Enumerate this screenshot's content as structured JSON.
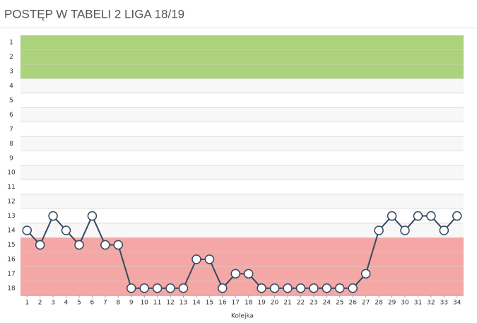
{
  "chart_data": {
    "type": "line",
    "title": "POSTĘP W TABELI 2 LIGA 18/19",
    "x_label": "Kolejka",
    "x": [
      1,
      2,
      3,
      4,
      5,
      6,
      7,
      8,
      9,
      10,
      11,
      12,
      13,
      14,
      15,
      16,
      17,
      18,
      19,
      20,
      21,
      22,
      23,
      24,
      25,
      26,
      27,
      28,
      29,
      30,
      31,
      32,
      33,
      34
    ],
    "series": [
      {
        "color": "#34495e",
        "values": [
          14,
          15,
          13,
          14,
          15,
          13,
          15,
          15,
          18,
          18,
          18,
          18,
          18,
          16,
          16,
          18,
          17,
          17,
          18,
          18,
          18,
          18,
          18,
          18,
          18,
          18,
          17,
          14,
          13,
          14,
          13,
          13,
          14,
          13
        ]
      }
    ],
    "xlim": [
      0.5,
      34.5
    ],
    "xticks": [
      1,
      2,
      3,
      4,
      5,
      6,
      7,
      8,
      9,
      10,
      11,
      12,
      13,
      14,
      15,
      16,
      17,
      18,
      19,
      20,
      21,
      22,
      23,
      24,
      25,
      26,
      27,
      28,
      29,
      30,
      31,
      32,
      33,
      34
    ],
    "ylim": [
      0.5,
      18.5
    ],
    "yticks": [
      1,
      2,
      3,
      4,
      5,
      6,
      7,
      8,
      9,
      10,
      11,
      12,
      13,
      14,
      15,
      16,
      17,
      18
    ],
    "y_inverted": true,
    "zones": [
      {
        "from": 1,
        "to": 3,
        "color": "#acd27d"
      },
      {
        "from": 4,
        "to": 14,
        "color": "#f7f7f7",
        "alt_color": "#ffffff"
      },
      {
        "from": 15,
        "to": 18,
        "color": "#f4a7a5"
      }
    ]
  }
}
